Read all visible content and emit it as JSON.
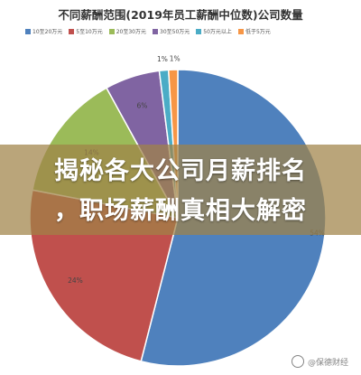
{
  "chart_data": {
    "type": "pie",
    "title": "不同薪酬范围(2019年员工薪酬中位数)公司数量",
    "legend_position": "top",
    "categories": [
      "10至20万元",
      "5至10万元",
      "20至30万元",
      "30至50万元",
      "50万元以上",
      "低于5万元"
    ],
    "values": [
      54,
      24,
      14,
      6,
      1,
      1
    ],
    "value_labels": [
      "54%",
      "24%",
      "14%",
      "6%",
      "1%",
      "1%"
    ],
    "colors": [
      "#4f81bd",
      "#c0504d",
      "#9bbb59",
      "#8064a2",
      "#4bacc6",
      "#f79646"
    ]
  },
  "overlay": {
    "line1": "揭秘各大公司月薪排名",
    "line2": "，职场薪酬真相大解密"
  },
  "watermark": {
    "text": "@保德财经",
    "icon": "weibo-logo-icon"
  }
}
